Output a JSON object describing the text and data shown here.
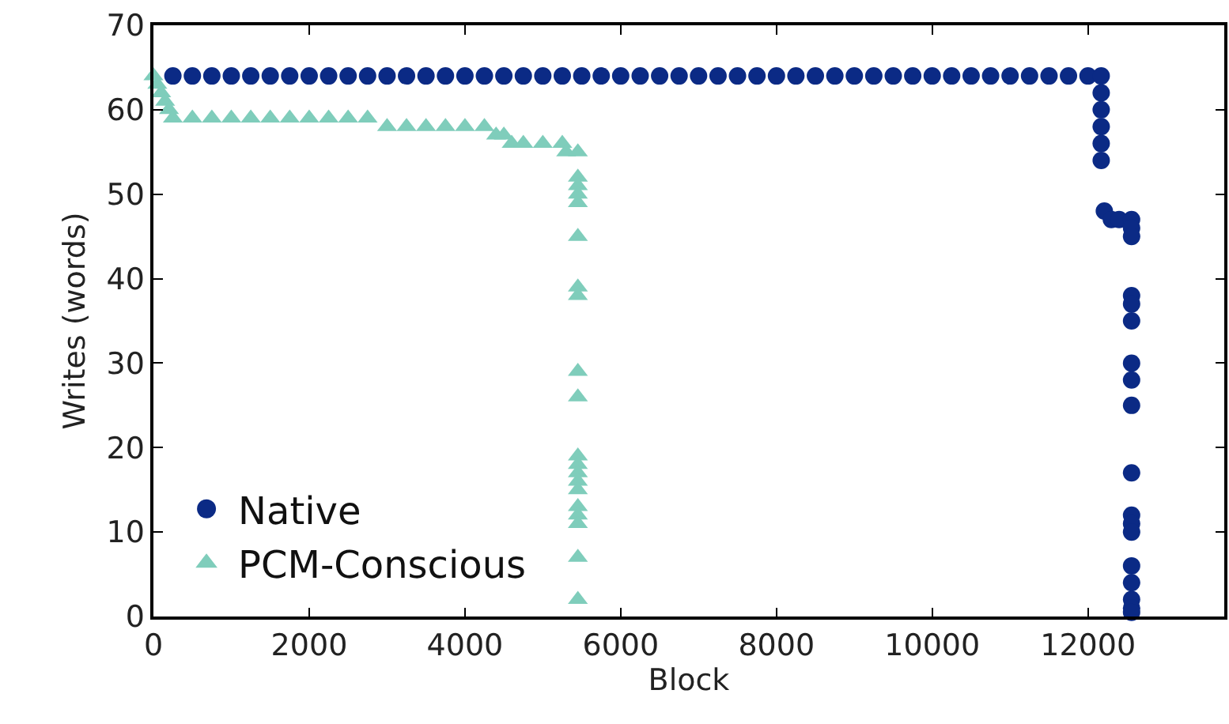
{
  "chart_data": {
    "type": "scatter",
    "xlabel": "Block",
    "ylabel": "Writes (words)",
    "xlim": [
      0,
      13750
    ],
    "ylim": [
      0,
      70
    ],
    "xticks": [
      0,
      2000,
      4000,
      6000,
      8000,
      10000,
      12000
    ],
    "yticks": [
      0,
      10,
      20,
      30,
      40,
      50,
      60,
      70
    ],
    "grid": false,
    "legend": "bottom left",
    "series": [
      {
        "name": "Native",
        "color": "#0b2a85",
        "marker": "circle",
        "x": [
          250,
          500,
          750,
          1000,
          1250,
          1500,
          1750,
          2000,
          2250,
          2500,
          2750,
          3000,
          3250,
          3500,
          3750,
          4000,
          4250,
          4500,
          4750,
          5000,
          5250,
          5500,
          5750,
          6000,
          6250,
          6500,
          6750,
          7000,
          7250,
          7500,
          7750,
          8000,
          8250,
          8500,
          8750,
          9000,
          9250,
          9500,
          9750,
          10000,
          10250,
          10500,
          10750,
          11000,
          11250,
          11500,
          11750,
          12000,
          12170,
          12170,
          12170,
          12170,
          12170,
          12170,
          12210,
          12300,
          12400,
          12560,
          12560,
          12560,
          12560,
          12560,
          12560,
          12560,
          12560,
          12560,
          12560,
          12560,
          12560,
          12560,
          12560,
          12560,
          12560,
          12560,
          12560
        ],
        "values": [
          64,
          64,
          64,
          64,
          64,
          64,
          64,
          64,
          64,
          64,
          64,
          64,
          64,
          64,
          64,
          64,
          64,
          64,
          64,
          64,
          64,
          64,
          64,
          64,
          64,
          64,
          64,
          64,
          64,
          64,
          64,
          64,
          64,
          64,
          64,
          64,
          64,
          64,
          64,
          64,
          64,
          64,
          64,
          64,
          64,
          64,
          64,
          64,
          64,
          62,
          60,
          58,
          56,
          54,
          48,
          47,
          47,
          47,
          46,
          45,
          38,
          37,
          35,
          30,
          28,
          25,
          17,
          12,
          11,
          10,
          6,
          4,
          2,
          1,
          0.5
        ]
      },
      {
        "name": "PCM-Conscious",
        "color": "#7fcdbb",
        "marker": "triangle",
        "x": [
          0,
          50,
          100,
          150,
          200,
          250,
          500,
          750,
          1000,
          1250,
          1500,
          1750,
          2000,
          2250,
          2500,
          2750,
          3000,
          3250,
          3500,
          3750,
          4000,
          4250,
          4400,
          4500,
          4600,
          4750,
          5000,
          5250,
          5300,
          5450,
          5450,
          5450,
          5450,
          5450,
          5450,
          5450,
          5450,
          5450,
          5450,
          5450,
          5450,
          5450,
          5450,
          5450,
          5450,
          5450,
          5450,
          5450,
          5450
        ],
        "values": [
          64,
          63,
          62,
          61,
          60,
          59,
          59,
          59,
          59,
          59,
          59,
          59,
          59,
          59,
          59,
          59,
          58,
          58,
          58,
          58,
          58,
          58,
          57,
          57,
          56,
          56,
          56,
          56,
          55,
          55,
          52,
          51,
          50,
          49,
          45,
          39,
          38,
          29,
          26,
          19,
          18,
          17,
          16,
          15,
          13,
          12,
          11,
          7,
          2
        ]
      }
    ]
  }
}
